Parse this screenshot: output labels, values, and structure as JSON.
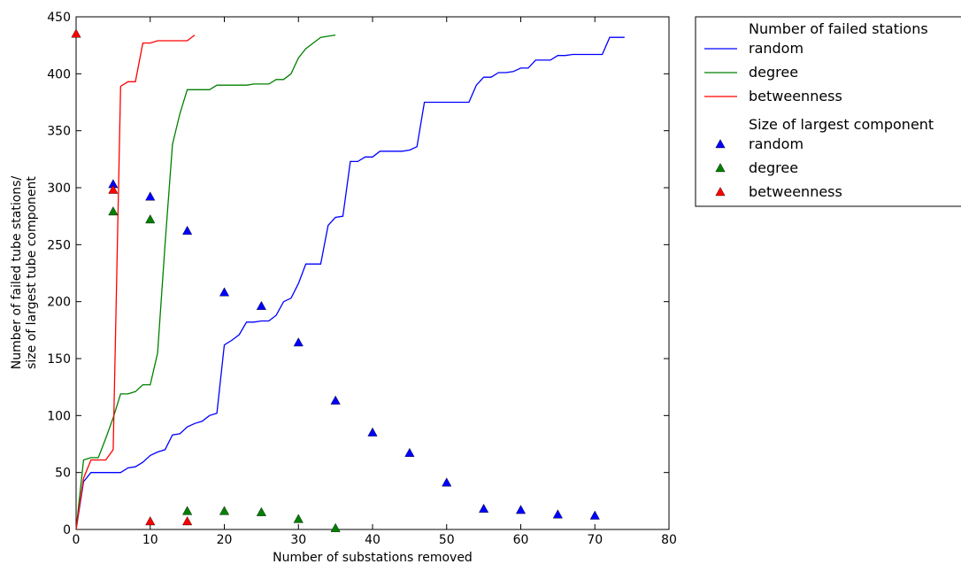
{
  "chart_data": {
    "type": "line",
    "xlabel": "Number of substations removed",
    "ylabel_lines": [
      "Number of failed tube stations/",
      "size of largest tube component"
    ],
    "xlim": [
      0,
      80
    ],
    "ylim": [
      0,
      450
    ],
    "xticks": [
      0,
      10,
      20,
      30,
      40,
      50,
      60,
      70,
      80
    ],
    "yticks": [
      0,
      50,
      100,
      150,
      200,
      250,
      300,
      350,
      400,
      450
    ],
    "grid": false,
    "legend_placement": "outside-top-right",
    "legend_groups": [
      {
        "heading": "Number of failed stations",
        "kind": "line"
      },
      {
        "heading": "Size of largest component",
        "kind": "marker"
      }
    ],
    "series": [
      {
        "name": "random",
        "group": "failed",
        "kind": "line",
        "color": "#0000ff",
        "x": [
          0,
          1,
          2,
          3,
          4,
          5,
          6,
          7,
          8,
          9,
          10,
          11,
          12,
          13,
          14,
          15,
          16,
          17,
          18,
          19,
          20,
          21,
          22,
          23,
          24,
          25,
          26,
          27,
          28,
          29,
          30,
          31,
          32,
          33,
          34,
          35,
          36,
          37,
          38,
          39,
          40,
          41,
          42,
          43,
          44,
          45,
          46,
          47,
          48,
          49,
          50,
          51,
          52,
          53,
          54,
          55,
          56,
          57,
          58,
          59,
          60,
          61,
          62,
          63,
          64,
          65,
          66,
          67,
          68,
          69,
          70,
          71,
          72,
          73,
          74
        ],
        "values": [
          0,
          42,
          50,
          50,
          50,
          50,
          50,
          54,
          55,
          59,
          65,
          68,
          70,
          83,
          84,
          90,
          93,
          95,
          100,
          102,
          162,
          166,
          171,
          182,
          182,
          183,
          183,
          188,
          200,
          203,
          216,
          233,
          233,
          233,
          267,
          274,
          275,
          323,
          323,
          327,
          327,
          332,
          332,
          332,
          332,
          333,
          336,
          375,
          375,
          375,
          375,
          375,
          375,
          375,
          390,
          397,
          397,
          401,
          401,
          402,
          405,
          405,
          412,
          412,
          412,
          416,
          416,
          417,
          417,
          417,
          417,
          417,
          432,
          432,
          432
        ]
      },
      {
        "name": "degree",
        "group": "failed",
        "kind": "line",
        "color": "#008000",
        "x": [
          0,
          1,
          2,
          3,
          4,
          5,
          6,
          7,
          8,
          9,
          10,
          11,
          12,
          13,
          14,
          15,
          16,
          17,
          18,
          19,
          20,
          21,
          22,
          23,
          24,
          25,
          26,
          27,
          28,
          29,
          30,
          31,
          32,
          33,
          34,
          35
        ],
        "values": [
          0,
          61,
          63,
          63,
          80,
          98,
          119,
          119,
          121,
          127,
          127,
          155,
          250,
          338,
          365,
          386,
          386,
          386,
          386,
          390,
          390,
          390,
          390,
          390,
          391,
          391,
          391,
          395,
          395,
          400,
          414,
          422,
          427,
          432,
          433,
          434
        ]
      },
      {
        "name": "betweenness",
        "group": "failed",
        "kind": "line",
        "color": "#ff0000",
        "x": [
          0,
          1,
          2,
          3,
          4,
          5,
          6,
          7,
          8,
          9,
          10,
          11,
          12,
          13,
          14,
          15,
          16
        ],
        "values": [
          0,
          45,
          61,
          61,
          61,
          70,
          389,
          393,
          393,
          427,
          427,
          429,
          429,
          429,
          429,
          429,
          434
        ]
      },
      {
        "name": "random",
        "group": "component",
        "kind": "marker",
        "color": "#0000ff",
        "x": [
          5,
          10,
          15,
          20,
          25,
          30,
          35,
          40,
          45,
          50,
          55,
          60,
          65,
          70
        ],
        "values": [
          303,
          292,
          262,
          208,
          196,
          164,
          113,
          85,
          67,
          41,
          18,
          17,
          13,
          12
        ]
      },
      {
        "name": "degree",
        "group": "component",
        "kind": "marker",
        "color": "#008000",
        "x": [
          5,
          10,
          15,
          20,
          25,
          30,
          35
        ],
        "values": [
          279,
          272,
          16,
          16,
          15,
          9,
          1
        ]
      },
      {
        "name": "betweenness",
        "group": "component",
        "kind": "marker",
        "color": "#ff0000",
        "x": [
          0,
          5,
          10,
          15
        ],
        "values": [
          435,
          298,
          7,
          7
        ]
      }
    ]
  }
}
